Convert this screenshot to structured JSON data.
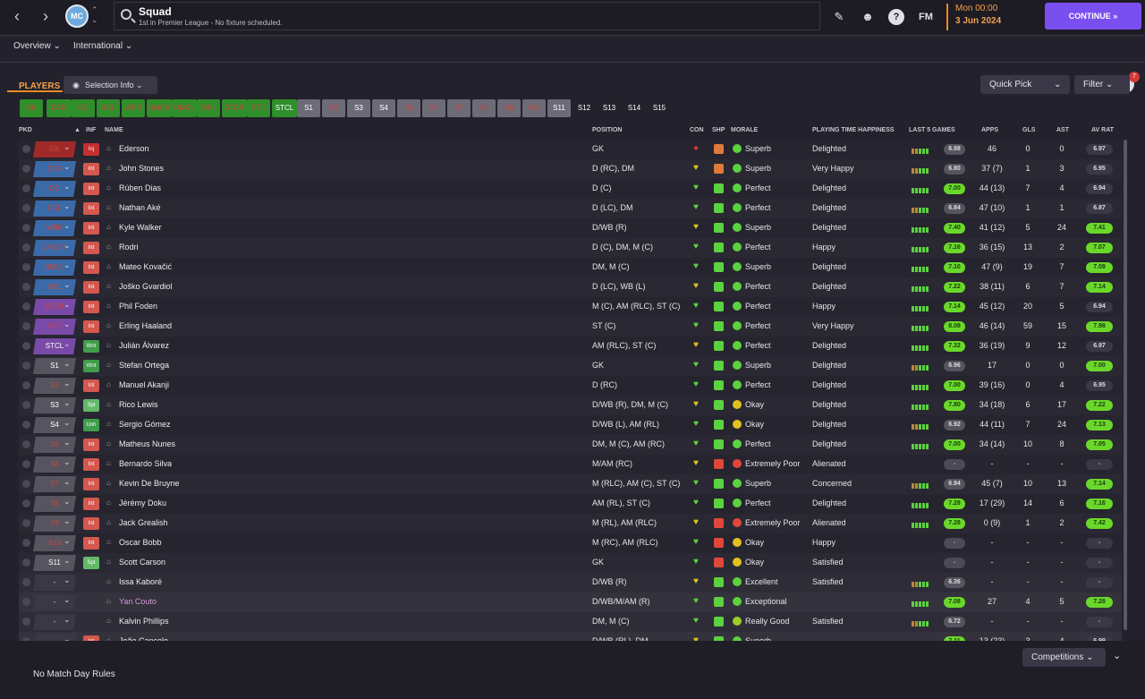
{
  "header": {
    "title": "Squad",
    "subtitle": "1st in Premier League - No fixture scheduled.",
    "time": "Mon 00:00",
    "date": "3 Jun 2024",
    "continue": "CONTINUE",
    "fm": "FM",
    "club_abbr": "MC",
    "notif_count": "7"
  },
  "tabs": [
    "Overview",
    "International"
  ],
  "toolbar": {
    "players": "PLAYERS",
    "selection_info": "Selection Info",
    "quick_pick": "Quick Pick",
    "filter": "Filter"
  },
  "slots": [
    "GK",
    "DCR",
    "DC",
    "DCL",
    "WBR",
    "DMCR",
    "DMCL",
    "WBL",
    "STCR",
    "STC",
    "STCL",
    "S1",
    "S2",
    "S3",
    "S4",
    "S5",
    "S6",
    "S7",
    "S8",
    "S9",
    "S10",
    "S11",
    "S12",
    "S13",
    "S14",
    "S15"
  ],
  "columns": {
    "pkd": "PKD",
    "inf": "INF",
    "name": "NAME",
    "position": "POSITION",
    "con": "CON",
    "shp": "SHP",
    "morale": "MORALE",
    "pth": "PLAYING TIME HAPPINESS",
    "l5": "LAST 5 GAMES",
    "apps": "APPS",
    "gls": "GLS",
    "ast": "AST",
    "avrat": "AV RAT"
  },
  "players": [
    {
      "pos": "GK",
      "inf": "Inj",
      "name": "Ederson",
      "position": "GK",
      "morale": "Superb",
      "pth": "Delighted",
      "rating": "6.98",
      "apps": "46",
      "gls": "0",
      "ast": "0",
      "avrat": "6.97"
    },
    {
      "pos": "DCR",
      "inf": "Int",
      "name": "John Stones",
      "position": "D (RC), DM",
      "morale": "Superb",
      "pth": "Very Happy",
      "rating": "6.80",
      "apps": "37 (7)",
      "gls": "1",
      "ast": "3",
      "avrat": "6.95"
    },
    {
      "pos": "DC",
      "inf": "Int",
      "name": "Rúben Dias",
      "position": "D (C)",
      "morale": "Perfect",
      "pth": "Delighted",
      "rating": "7.00",
      "apps": "44 (13)",
      "gls": "7",
      "ast": "4",
      "avrat": "6.94"
    },
    {
      "pos": "DCL",
      "inf": "Int",
      "name": "Nathan Aké",
      "position": "D (LC), DM",
      "morale": "Perfect",
      "pth": "Delighted",
      "rating": "6.84",
      "apps": "47 (10)",
      "gls": "1",
      "ast": "1",
      "avrat": "6.87"
    },
    {
      "pos": "WBR",
      "inf": "Int",
      "name": "Kyle Walker",
      "position": "D/WB (R)",
      "morale": "Superb",
      "pth": "Delighted",
      "rating": "7.40",
      "apps": "41 (12)",
      "gls": "5",
      "ast": "24",
      "avrat": "7.41"
    },
    {
      "pos": "DMCR",
      "inf": "Int",
      "name": "Rodri",
      "position": "D (C), DM, M (C)",
      "morale": "Perfect",
      "pth": "Happy",
      "rating": "7.16",
      "apps": "36 (15)",
      "gls": "13",
      "ast": "2",
      "avrat": "7.07"
    },
    {
      "pos": "DMCL",
      "inf": "Int",
      "name": "Mateo Kovačić",
      "position": "DM, M (C)",
      "morale": "Superb",
      "pth": "Delighted",
      "rating": "7.10",
      "apps": "47 (9)",
      "gls": "19",
      "ast": "7",
      "avrat": "7.09"
    },
    {
      "pos": "WBL",
      "inf": "Int",
      "name": "Joško Gvardiol",
      "position": "D (LC), WB (L)",
      "morale": "Perfect",
      "pth": "Delighted",
      "rating": "7.22",
      "apps": "38 (11)",
      "gls": "6",
      "ast": "7",
      "avrat": "7.14"
    },
    {
      "pos": "STCR",
      "inf": "Int",
      "name": "Phil Foden",
      "position": "M (C), AM (RLC), ST (C)",
      "morale": "Perfect",
      "pth": "Happy",
      "rating": "7.14",
      "apps": "45 (12)",
      "gls": "20",
      "ast": "5",
      "avrat": "6.94"
    },
    {
      "pos": "STC",
      "inf": "Int",
      "name": "Erling Haaland",
      "position": "ST (C)",
      "morale": "Perfect",
      "pth": "Very Happy",
      "rating": "8.08",
      "apps": "46 (14)",
      "gls": "59",
      "ast": "15",
      "avrat": "7.98"
    },
    {
      "pos": "STCL",
      "inf": "Wnt",
      "name": "Julián Álvarez",
      "position": "AM (RLC), ST (C)",
      "morale": "Perfect",
      "pth": "Delighted",
      "rating": "7.32",
      "apps": "36 (19)",
      "gls": "9",
      "ast": "12",
      "avrat": "6.97"
    },
    {
      "pos": "S1",
      "inf": "Wnt",
      "name": "Stefan Ortega",
      "position": "GK",
      "morale": "Superb",
      "pth": "Delighted",
      "rating": "6.96",
      "apps": "17",
      "gls": "0",
      "ast": "0",
      "avrat": "7.00"
    },
    {
      "pos": "S2",
      "inf": "Int",
      "name": "Manuel Akanji",
      "position": "D (RC)",
      "morale": "Perfect",
      "pth": "Delighted",
      "rating": "7.00",
      "apps": "39 (16)",
      "gls": "0",
      "ast": "4",
      "avrat": "6.95"
    },
    {
      "pos": "S3",
      "inf": "Spt",
      "name": "Rico Lewis",
      "position": "D/WB (R), DM, M (C)",
      "morale": "Okay",
      "pth": "Delighted",
      "rating": "7.80",
      "apps": "34 (18)",
      "gls": "6",
      "ast": "17",
      "avrat": "7.22"
    },
    {
      "pos": "S4",
      "inf": "Unh",
      "name": "Sergio Gómez",
      "position": "D/WB (L), AM (RL)",
      "morale": "Okay",
      "pth": "Delighted",
      "rating": "6.92",
      "apps": "44 (11)",
      "gls": "7",
      "ast": "24",
      "avrat": "7.13"
    },
    {
      "pos": "S5",
      "inf": "Int",
      "name": "Matheus Nunes",
      "position": "DM, M (C), AM (RC)",
      "morale": "Perfect",
      "pth": "Delighted",
      "rating": "7.00",
      "apps": "34 (14)",
      "gls": "10",
      "ast": "8",
      "avrat": "7.05"
    },
    {
      "pos": "S6",
      "inf": "Int",
      "name": "Bernardo Silva",
      "position": "M/AM (RC)",
      "morale": "Extremely Poor",
      "pth": "Alienated",
      "rating": "-",
      "apps": "-",
      "gls": "-",
      "ast": "-",
      "avrat": "-"
    },
    {
      "pos": "S7",
      "inf": "Int",
      "name": "Kevin De Bruyne",
      "position": "M (RLC), AM (C), ST (C)",
      "morale": "Superb",
      "pth": "Concerned",
      "rating": "6.94",
      "apps": "45 (7)",
      "gls": "10",
      "ast": "13",
      "avrat": "7.14"
    },
    {
      "pos": "S8",
      "inf": "Int",
      "name": "Jérémy Doku",
      "position": "AM (RL), ST (C)",
      "morale": "Perfect",
      "pth": "Delighted",
      "rating": "7.28",
      "apps": "17 (29)",
      "gls": "14",
      "ast": "6",
      "avrat": "7.16"
    },
    {
      "pos": "S9",
      "inf": "Int",
      "name": "Jack Grealish",
      "position": "M (RL), AM (RLC)",
      "morale": "Extremely Poor",
      "pth": "Alienated",
      "rating": "7.28",
      "apps": "0 (9)",
      "gls": "1",
      "ast": "2",
      "avrat": "7.42"
    },
    {
      "pos": "S10",
      "inf": "Int",
      "name": "Oscar Bobb",
      "position": "M (RC), AM (RLC)",
      "morale": "Okay",
      "pth": "Happy",
      "rating": "-",
      "apps": "-",
      "gls": "-",
      "ast": "-",
      "avrat": "-"
    },
    {
      "pos": "S11",
      "inf": "Spt",
      "name": "Scott Carson",
      "position": "GK",
      "morale": "Okay",
      "pth": "Satisfied",
      "rating": "-",
      "apps": "-",
      "gls": "-",
      "ast": "-",
      "avrat": "-"
    },
    {
      "pos": "-",
      "inf": "",
      "name": "Issa Kaboré",
      "position": "D/WB (R)",
      "morale": "Excellent",
      "pth": "Satisfied",
      "rating": "6.36",
      "apps": "-",
      "gls": "-",
      "ast": "-",
      "avrat": "-"
    },
    {
      "pos": "-",
      "inf": "",
      "name": "Yan Couto",
      "position": "D/WB/M/AM (R)",
      "morale": "Exceptional",
      "pth": "",
      "rating": "7.08",
      "apps": "27",
      "gls": "4",
      "ast": "5",
      "avrat": "7.28"
    },
    {
      "pos": "-",
      "inf": "",
      "name": "Kalvin Phillips",
      "position": "DM, M (C)",
      "morale": "Really Good",
      "pth": "Satisfied",
      "rating": "6.72",
      "apps": "-",
      "gls": "-",
      "ast": "-",
      "avrat": "-"
    },
    {
      "pos": "-",
      "inf": "Int",
      "name": "João Cancelo",
      "position": "D/WB (RL), DM",
      "morale": "Superb",
      "pth": "",
      "rating": "7.11",
      "apps": "13 (23)",
      "gls": "3",
      "ast": "4",
      "avrat": "6.99"
    }
  ],
  "footer": {
    "no_match_day": "No Match Day Rules",
    "competitions": "Competitions"
  },
  "colors": {
    "accent": "#7a4ff0",
    "orange": "#f3a24b",
    "green": "#6ad82a",
    "slot_green": "#2f8f2b"
  }
}
